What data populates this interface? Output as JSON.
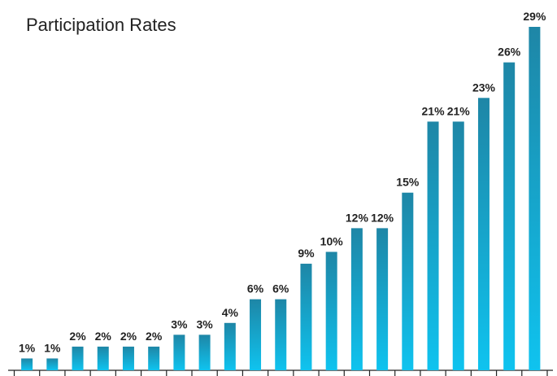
{
  "chart_data": {
    "type": "bar",
    "title": "Participation Rates",
    "categories": [
      null,
      null,
      null,
      null,
      null,
      null,
      null,
      null,
      null,
      null,
      null,
      null,
      null,
      null,
      null,
      null,
      null,
      null,
      null,
      null,
      null
    ],
    "values": [
      1,
      1,
      2,
      2,
      2,
      2,
      3,
      3,
      4,
      6,
      6,
      9,
      10,
      12,
      12,
      15,
      21,
      21,
      23,
      26,
      29
    ],
    "value_labels": [
      "1%",
      "1%",
      "2%",
      "2%",
      "2%",
      "2%",
      "3%",
      "3%",
      "4%",
      "6%",
      "6%",
      "9%",
      "10%",
      "12%",
      "12%",
      "15%",
      "21%",
      "21%",
      "23%",
      "26%",
      "29%"
    ],
    "gradient": [
      "#1e86a6",
      "#0fc3ef"
    ]
  }
}
